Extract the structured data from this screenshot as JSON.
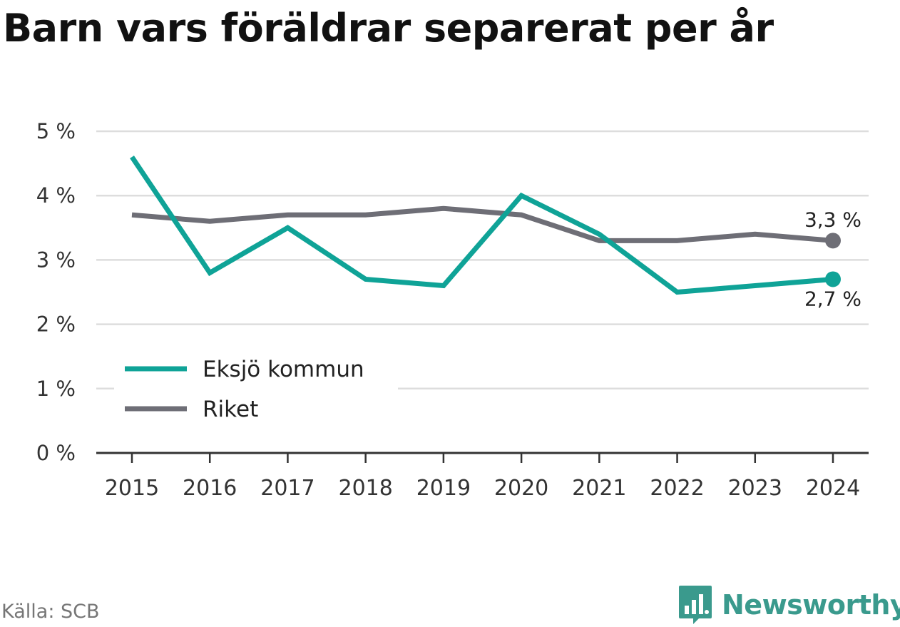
{
  "title": "Barn vars föräldrar separerat per år",
  "source": "Källa: SCB",
  "brand": "Newsworthy",
  "colors": {
    "eksjo": "#0fa397",
    "riket": "#6e6e76",
    "grid": "#dddddd",
    "axis": "#333333",
    "brand": "#3a9a8d"
  },
  "chart_data": {
    "type": "line",
    "categories": [
      "2015",
      "2016",
      "2017",
      "2018",
      "2019",
      "2020",
      "2021",
      "2022",
      "2023",
      "2024"
    ],
    "series": [
      {
        "name": "Eksjö kommun",
        "color": "#0fa397",
        "values": [
          4.6,
          2.8,
          3.5,
          2.7,
          2.6,
          4.0,
          3.4,
          2.5,
          2.6,
          2.7
        ],
        "end_label": "2,7 %"
      },
      {
        "name": "Riket",
        "color": "#6e6e76",
        "values": [
          3.7,
          3.6,
          3.7,
          3.7,
          3.8,
          3.7,
          3.3,
          3.3,
          3.4,
          3.3
        ],
        "end_label": "3,3 %"
      }
    ],
    "ylim": [
      0,
      5
    ],
    "y_ticks": [
      0,
      1,
      2,
      3,
      4,
      5
    ],
    "y_tick_labels": [
      "0 %",
      "1 %",
      "2 %",
      "3 %",
      "4 %",
      "5 %"
    ],
    "grid": true,
    "legend_position": "bottom-left"
  }
}
